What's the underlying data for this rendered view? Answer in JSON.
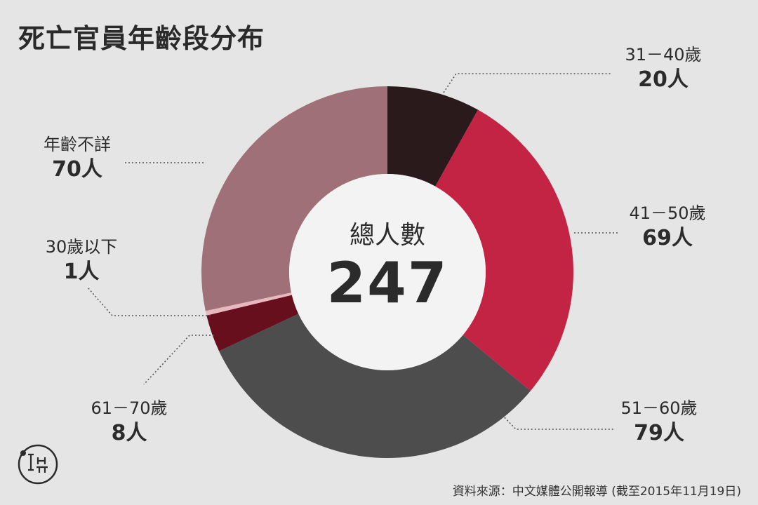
{
  "title": "死亡官員年齡段分布",
  "center_label": "總人數",
  "total": "247",
  "source": "資料來源：中文媒體公開報導 (截至2015年11月19日)",
  "logo_text": "端",
  "colors": {
    "background": "#e5e5e5",
    "center": "#f3f3f3",
    "leader": "#555555"
  },
  "chart_data": {
    "type": "pie",
    "variant": "donut",
    "total": 247,
    "unit": "人",
    "slices": [
      {
        "label": "31－40歲",
        "value": 20,
        "display": "20人",
        "color": "#2b1a1c"
      },
      {
        "label": "41－50歲",
        "value": 69,
        "display": "69人",
        "color": "#c42444"
      },
      {
        "label": "51－60歲",
        "value": 79,
        "display": "79人",
        "color": "#4d4d4d"
      },
      {
        "label": "61－70歲",
        "value": 8,
        "display": "8人",
        "color": "#680f1e"
      },
      {
        "label": "30歲以下",
        "value": 1,
        "display": "1人",
        "color": "#e8b8bf"
      },
      {
        "label": "年齡不詳",
        "value": 70,
        "display": "70人",
        "color": "#a07078"
      }
    ]
  }
}
